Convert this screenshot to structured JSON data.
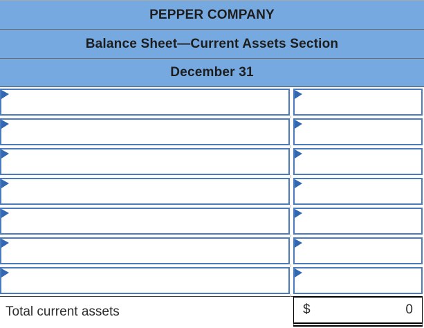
{
  "header": {
    "company": "PEPPER COMPANY",
    "statement": "Balance Sheet—Current Assets Section",
    "date": "December 31"
  },
  "table": {
    "row_count": 7,
    "rows": [
      {
        "account": "",
        "amount": ""
      },
      {
        "account": "",
        "amount": ""
      },
      {
        "account": "",
        "amount": ""
      },
      {
        "account": "",
        "amount": ""
      },
      {
        "account": "",
        "amount": ""
      },
      {
        "account": "",
        "amount": ""
      },
      {
        "account": "",
        "amount": ""
      }
    ],
    "total": {
      "label": "Total current assets",
      "currency_symbol": "$",
      "amount": "0"
    }
  },
  "colors": {
    "header_bg": "#76a9e0",
    "cell_border": "#4a7cbd",
    "marker_color": "#3268b2",
    "total_border": "#000000"
  }
}
